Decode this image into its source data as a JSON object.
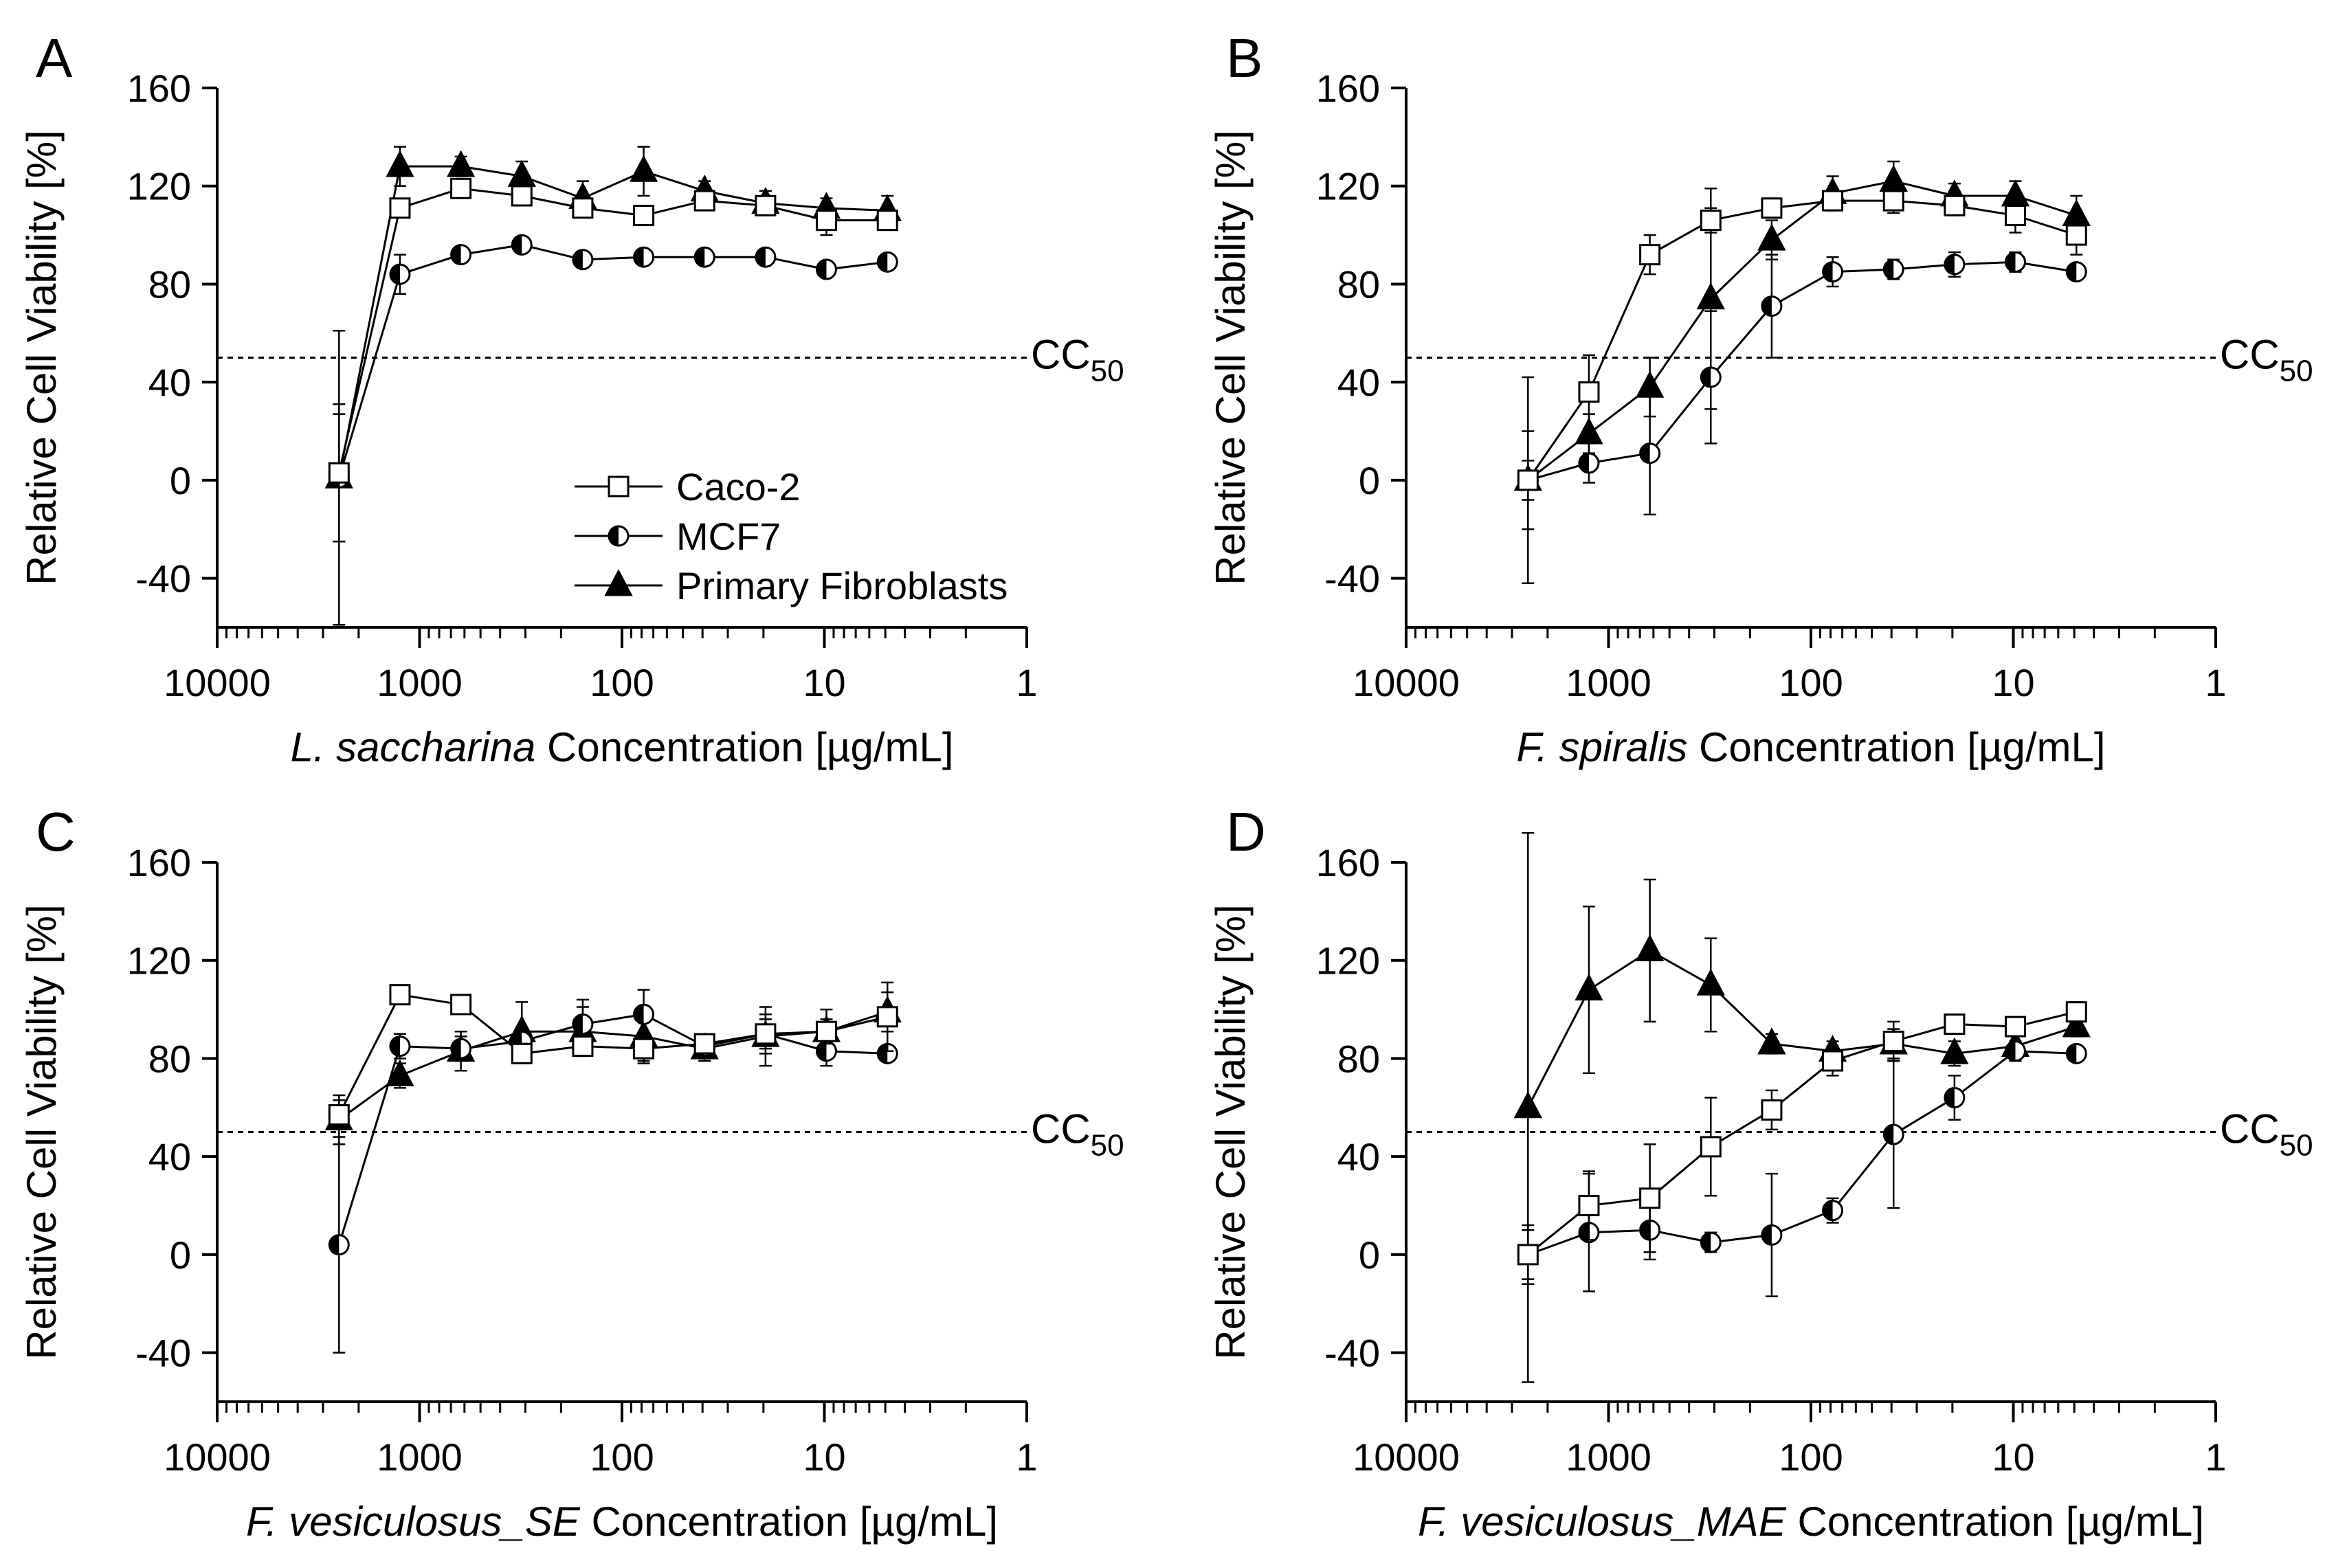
{
  "figure": {
    "legend": [
      {
        "label": "Caco-2",
        "marker": "square-open"
      },
      {
        "label": "MCF7",
        "marker": "circle-half"
      },
      {
        "label": "Primary Fibroblasts",
        "marker": "triangle-filled"
      }
    ],
    "cc50_label": "CC",
    "cc50_sub": "50",
    "cc50_value": 50,
    "ylabel": "Relative Cell Viability [%]",
    "xlabel_suffix": " Concentration [µg/mL]"
  },
  "chart_data": [
    {
      "panel_label": "A",
      "type": "scatter",
      "species": "L. saccharina",
      "xlabel": "L. saccharina Concentration [µg/mL]",
      "ylabel": "Relative Cell Viability [%]",
      "xscale": "log",
      "xlim": [
        10000,
        1
      ],
      "ylim": [
        -60,
        160
      ],
      "xticks": [
        10000,
        1000,
        100,
        10,
        1
      ],
      "xtick_labels": [
        "10000",
        "1000",
        "100",
        "10",
        "1"
      ],
      "yticks": [
        -40,
        0,
        40,
        80,
        120,
        160
      ],
      "ytick_labels": [
        "-40",
        "0",
        "40",
        "80",
        "120",
        "160"
      ],
      "legend_shown": true,
      "legend_position": "lower-right",
      "series": [
        {
          "name": "Caco-2",
          "marker": "square-open",
          "x": [
            2500,
            1250,
            625,
            312.5,
            156.25,
            78.125,
            39.0625,
            19.53,
            9.77,
            4.88
          ],
          "y": [
            3,
            111,
            119,
            116,
            111,
            108,
            114,
            112,
            106,
            106
          ],
          "err": [
            28,
            3,
            3,
            3,
            3,
            3,
            3,
            3,
            6,
            3
          ]
        },
        {
          "name": "MCF7",
          "marker": "circle-half",
          "x": [
            2500,
            1250,
            625,
            312.5,
            156.25,
            78.125,
            39.0625,
            19.53,
            9.77,
            4.88
          ],
          "y": [
            1,
            84,
            92,
            96,
            90,
            91,
            91,
            91,
            86,
            89
          ],
          "err": [
            60,
            8,
            3,
            3,
            3,
            3,
            3,
            3,
            3,
            3
          ]
        },
        {
          "name": "Primary Fibroblasts",
          "marker": "triangle-filled",
          "x": [
            2500,
            1250,
            625,
            312.5,
            156.25,
            78.125,
            39.0625,
            19.53,
            9.77,
            4.88
          ],
          "y": [
            1,
            128,
            128,
            124,
            115,
            126,
            118,
            113,
            111,
            110
          ],
          "err": [
            26,
            8,
            4,
            6,
            7,
            10,
            4,
            5,
            4,
            6
          ]
        }
      ]
    },
    {
      "panel_label": "B",
      "type": "scatter",
      "species": "F. spiralis",
      "xlabel": "F. spiralis Concentration [µg/mL]",
      "ylabel": "Relative Cell Viability [%]",
      "xscale": "log",
      "xlim": [
        10000,
        1
      ],
      "ylim": [
        -60,
        160
      ],
      "xticks": [
        10000,
        1000,
        100,
        10,
        1
      ],
      "xtick_labels": [
        "10000",
        "1000",
        "100",
        "10",
        "1"
      ],
      "yticks": [
        -40,
        0,
        40,
        80,
        120,
        160
      ],
      "ytick_labels": [
        "-40",
        "0",
        "40",
        "80",
        "120",
        "160"
      ],
      "legend_shown": false,
      "series": [
        {
          "name": "Caco-2",
          "marker": "square-open",
          "x": [
            2500,
            1250,
            625,
            312.5,
            156.25,
            78.125,
            39.0625,
            19.53,
            9.77,
            4.88
          ],
          "y": [
            0,
            36,
            92,
            106,
            111,
            114,
            114,
            112,
            108,
            100
          ],
          "err": [
            20,
            15,
            8,
            5,
            4,
            4,
            5,
            4,
            7,
            8
          ]
        },
        {
          "name": "MCF7",
          "marker": "circle-half",
          "x": [
            2500,
            1250,
            625,
            312.5,
            156.25,
            78.125,
            39.0625,
            19.53,
            9.77,
            4.88
          ],
          "y": [
            0,
            7,
            11,
            42,
            71,
            85,
            86,
            88,
            89,
            85
          ],
          "err": [
            42,
            8,
            25,
            27,
            21,
            6,
            4,
            5,
            4,
            3
          ]
        },
        {
          "name": "Primary Fibroblasts",
          "marker": "triangle-filled",
          "x": [
            2500,
            1250,
            625,
            312.5,
            156.25,
            78.125,
            39.0625,
            19.53,
            9.77,
            4.88
          ],
          "y": [
            0,
            19,
            38,
            74,
            98,
            117,
            122,
            116,
            116,
            108
          ],
          "err": [
            8,
            8,
            12,
            45,
            8,
            7,
            8,
            5,
            6,
            8
          ]
        }
      ]
    },
    {
      "panel_label": "C",
      "type": "scatter",
      "species": "F. vesiculosus_SE",
      "xlabel": "F. vesiculosus_SE Concentration [µg/mL]",
      "ylabel": "Relative Cell Viability [%]",
      "xscale": "log",
      "xlim": [
        10000,
        1
      ],
      "ylim": [
        -60,
        160
      ],
      "xticks": [
        10000,
        1000,
        100,
        10,
        1
      ],
      "xtick_labels": [
        "10000",
        "1000",
        "100",
        "10",
        "1"
      ],
      "yticks": [
        -40,
        0,
        40,
        80,
        120,
        160
      ],
      "ytick_labels": [
        "-40",
        "0",
        "40",
        "80",
        "120",
        "160"
      ],
      "legend_shown": false,
      "series": [
        {
          "name": "Caco-2",
          "marker": "square-open",
          "x": [
            2500,
            1250,
            625,
            312.5,
            156.25,
            78.125,
            39.0625,
            19.53,
            9.77,
            4.88
          ],
          "y": [
            57,
            106,
            102,
            82,
            85,
            84,
            86,
            90,
            91,
            97
          ],
          "err": [
            6,
            3,
            3,
            4,
            3,
            6,
            3,
            6,
            5,
            14
          ]
        },
        {
          "name": "MCF7",
          "marker": "circle-half",
          "x": [
            2500,
            1250,
            625,
            312.5,
            156.25,
            78.125,
            39.0625,
            19.53,
            9.77,
            4.88
          ],
          "y": [
            4,
            85,
            84,
            87,
            94,
            98,
            85,
            90,
            83,
            82
          ],
          "err": [
            44,
            5,
            5,
            5,
            10,
            10,
            5,
            8,
            6,
            3
          ]
        },
        {
          "name": "Primary Fibroblasts",
          "marker": "triangle-filled",
          "x": [
            2500,
            1250,
            625,
            312.5,
            156.25,
            78.125,
            39.0625,
            19.53,
            9.77,
            4.88
          ],
          "y": [
            55,
            73,
            83,
            91,
            91,
            89,
            84,
            89,
            91,
            99
          ],
          "err": [
            10,
            5,
            8,
            12,
            10,
            10,
            5,
            12,
            9,
            8
          ]
        }
      ]
    },
    {
      "panel_label": "D",
      "type": "scatter",
      "species": "F. vesiculosus_MAE",
      "xlabel": "F. vesiculosus_MAE Concentration [µg/mL]",
      "ylabel": "Relative Cell Viability [%]",
      "xscale": "log",
      "xlim": [
        10000,
        1
      ],
      "ylim": [
        -60,
        160
      ],
      "xticks": [
        10000,
        1000,
        100,
        10,
        1
      ],
      "xtick_labels": [
        "10000",
        "1000",
        "100",
        "10",
        "1"
      ],
      "yticks": [
        -40,
        0,
        40,
        80,
        120,
        160
      ],
      "ytick_labels": [
        "-40",
        "0",
        "40",
        "80",
        "120",
        "160"
      ],
      "legend_shown": false,
      "series": [
        {
          "name": "Caco-2",
          "marker": "square-open",
          "x": [
            2500,
            1250,
            625,
            312.5,
            156.25,
            78.125,
            39.0625,
            19.53,
            9.77,
            4.88
          ],
          "y": [
            0,
            20,
            23,
            44,
            59,
            79,
            87,
            94,
            93,
            99
          ],
          "err": [
            10,
            14,
            22,
            20,
            8,
            6,
            8,
            4,
            3,
            4
          ]
        },
        {
          "name": "MCF7",
          "marker": "circle-half",
          "x": [
            2500,
            1250,
            625,
            312.5,
            156.25,
            78.125,
            39.0625,
            19.53,
            9.77,
            4.88
          ],
          "y": [
            0,
            9,
            10,
            5,
            8,
            18,
            49,
            64,
            83,
            82
          ],
          "err": [
            12,
            24,
            12,
            4,
            25,
            5,
            30,
            9,
            4,
            3
          ]
        },
        {
          "name": "Primary Fibroblasts",
          "marker": "triangle-filled",
          "x": [
            2500,
            1250,
            625,
            312.5,
            156.25,
            78.125,
            39.0625,
            19.53,
            9.77,
            4.88
          ],
          "y": [
            60,
            108,
            124,
            110,
            86,
            83,
            86,
            82,
            85,
            93
          ],
          "err": [
            112,
            34,
            29,
            19,
            4,
            4,
            6,
            5,
            5,
            4
          ]
        }
      ]
    }
  ]
}
